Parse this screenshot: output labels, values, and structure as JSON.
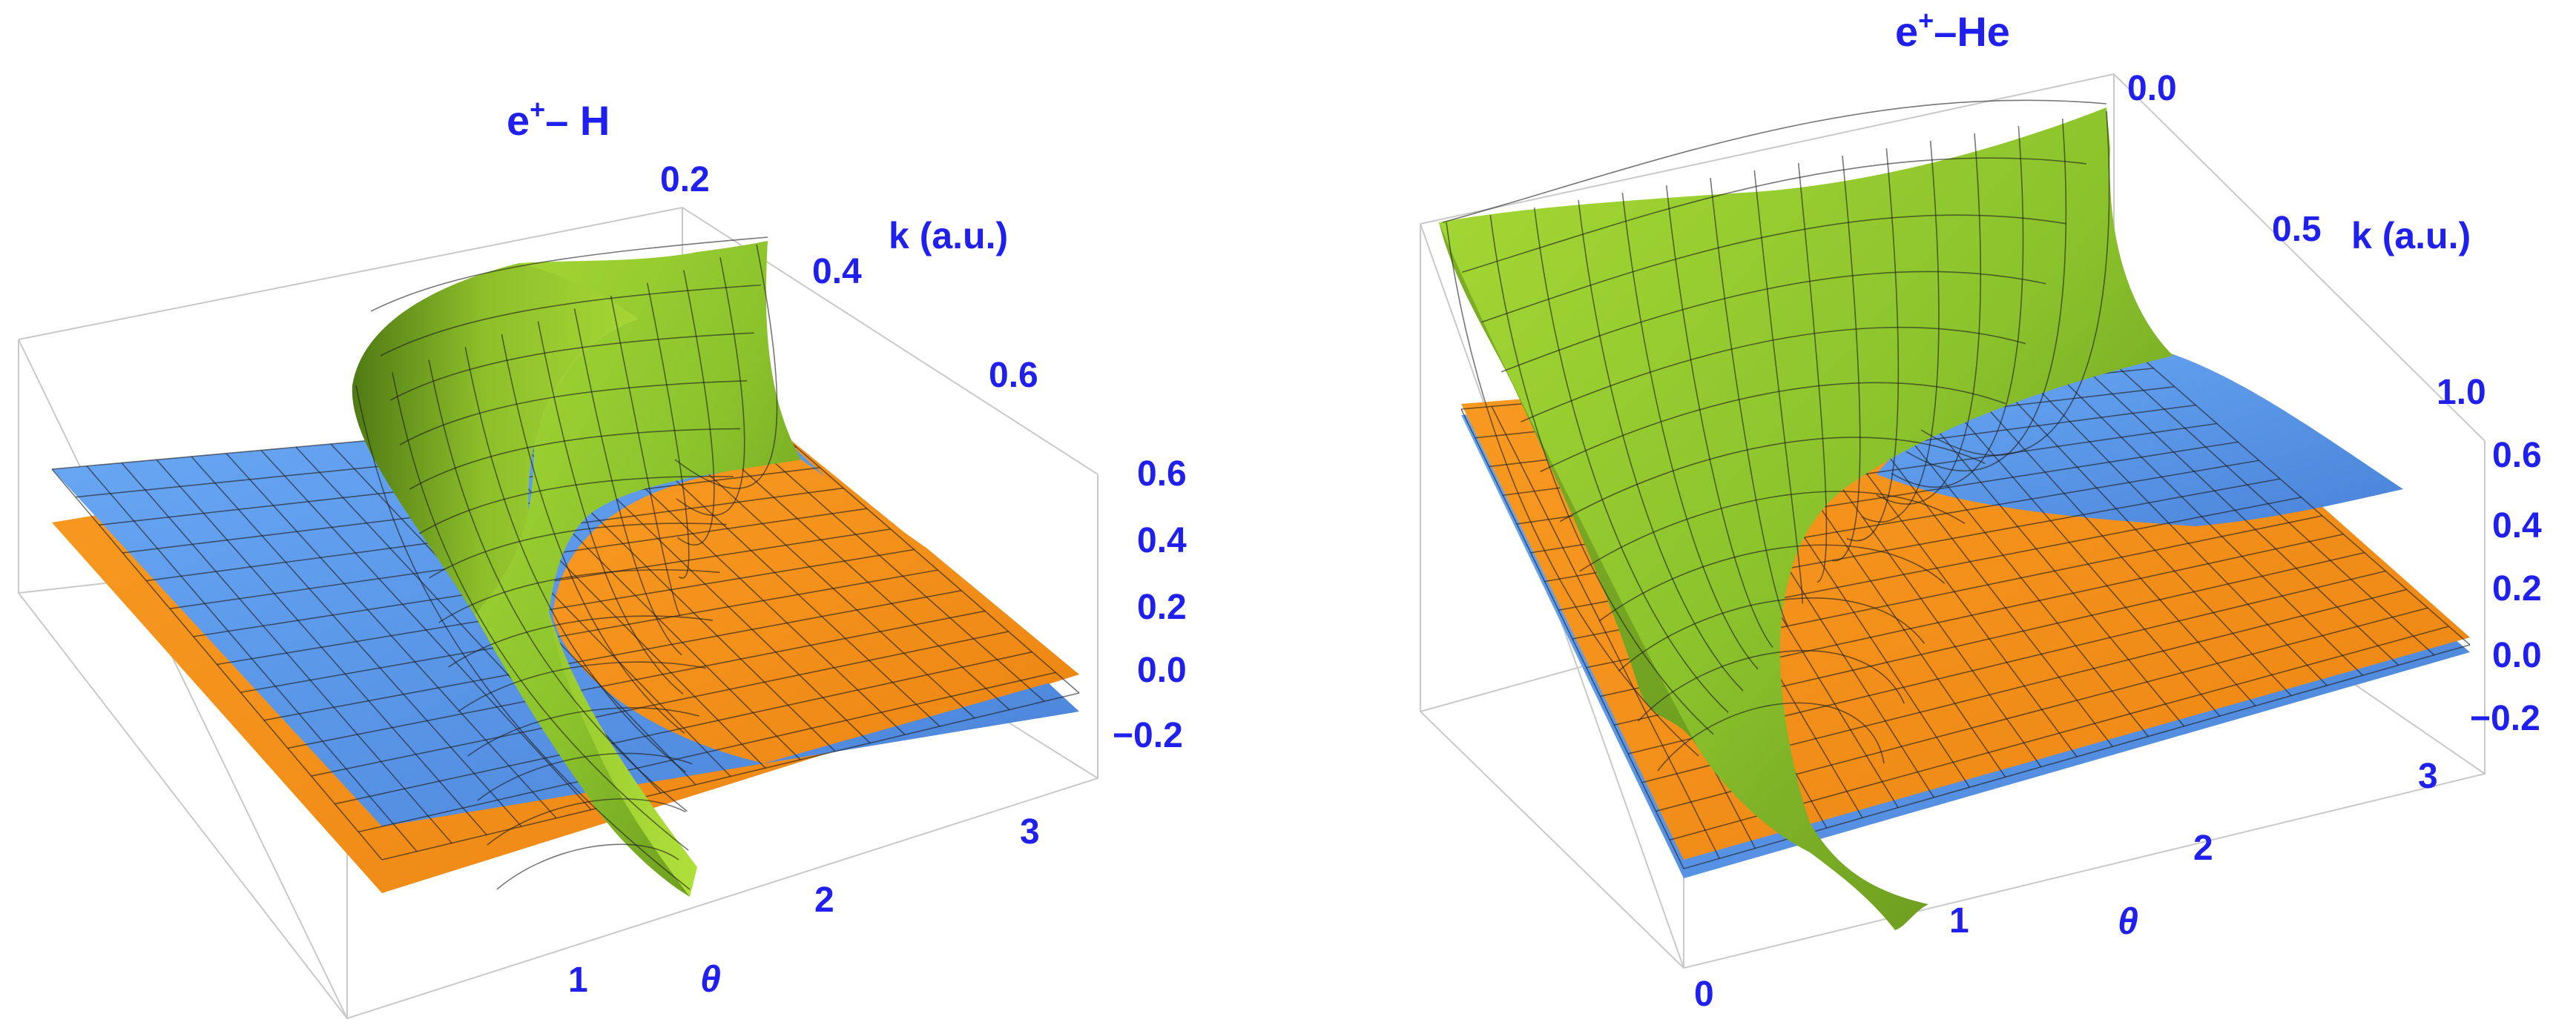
{
  "figure": {
    "panels": [
      {
        "title_main": "e",
        "title_sup": "+",
        "title_rest": "– H",
        "k_axis_label": "k (a.u.)",
        "theta_axis_label": "θ",
        "k_ticks": [
          "0.2",
          "0.4",
          "0.6"
        ],
        "theta_ticks": [
          "1",
          "2",
          "3"
        ],
        "z_ticks": [
          "0.6",
          "0.4",
          "0.2",
          "0.0",
          "−0.2"
        ]
      },
      {
        "title_main": "e",
        "title_sup": "+",
        "title_rest": "–He",
        "k_axis_label": "k (a.u.)",
        "theta_axis_label": "θ",
        "k_ticks": [
          "0.0",
          "0.5",
          "1.0"
        ],
        "theta_ticks": [
          "0",
          "1",
          "2",
          "3"
        ],
        "z_ticks": [
          "0.6",
          "0.4",
          "0.2",
          "0.0",
          "−0.2"
        ]
      }
    ]
  },
  "colors": {
    "green_surface": "#9acd32",
    "blue_surface": "#5b9bf0",
    "orange_surface": "#f7941d",
    "label_blue": "#1f1ff0",
    "box_gray": "#c9c9c9"
  },
  "chart_data": [
    {
      "type": "surface3d",
      "title": "e+– H",
      "x_label": "θ",
      "y_label": "k (a.u.)",
      "x_range": [
        0,
        3.14
      ],
      "y_range": [
        0.1,
        0.7
      ],
      "z_range": [
        -0.2,
        0.6
      ],
      "surfaces": [
        {
          "color": "green",
          "shape": "sharp ridge rising toward small k near θ≈1.5"
        },
        {
          "color": "blue",
          "shape": "tilted plane, higher at small θ"
        },
        {
          "color": "orange",
          "shape": "tilted plane, higher at large θ"
        }
      ]
    },
    {
      "type": "surface3d",
      "title": "e+–He",
      "x_label": "θ",
      "y_label": "k (a.u.)",
      "x_range": [
        0,
        3.14
      ],
      "y_range": [
        0,
        1.2
      ],
      "z_range": [
        -0.2,
        0.6
      ],
      "surfaces": [
        {
          "color": "green",
          "shape": "wall rising toward small k, valley near θ≈1.2"
        },
        {
          "color": "blue",
          "shape": "near-flat plane, slightly above orange at large k"
        },
        {
          "color": "orange",
          "shape": "near-flat plane"
        }
      ]
    }
  ]
}
